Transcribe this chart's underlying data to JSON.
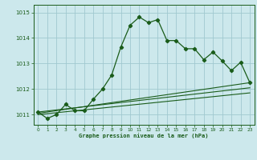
{
  "title": "Graphe pression niveau de la mer (hPa)",
  "bg_color": "#cce8ec",
  "grid_color": "#a0c8d0",
  "line_color": "#1a5c1a",
  "xlim": [
    -0.5,
    23.5
  ],
  "ylim": [
    1010.6,
    1015.3
  ],
  "yticks": [
    1011,
    1012,
    1013,
    1014,
    1015
  ],
  "xticks": [
    0,
    1,
    2,
    3,
    4,
    5,
    6,
    7,
    8,
    9,
    10,
    11,
    12,
    13,
    14,
    15,
    16,
    17,
    18,
    19,
    20,
    21,
    22,
    23
  ],
  "series_main": {
    "x": [
      0,
      1,
      2,
      3,
      4,
      5,
      6,
      7,
      8,
      9,
      10,
      11,
      12,
      13,
      14,
      15,
      16,
      17,
      18,
      19,
      20,
      21,
      22,
      23
    ],
    "y": [
      1011.1,
      1010.85,
      1011.0,
      1011.4,
      1011.15,
      1011.15,
      1011.6,
      1012.0,
      1012.55,
      1013.65,
      1014.5,
      1014.82,
      1014.6,
      1014.72,
      1013.9,
      1013.9,
      1013.58,
      1013.58,
      1013.15,
      1013.45,
      1013.1,
      1012.72,
      1013.05,
      1012.25
    ]
  },
  "line1": {
    "x": [
      0,
      23
    ],
    "y": [
      1011.05,
      1012.25
    ]
  },
  "line2": {
    "x": [
      0,
      23
    ],
    "y": [
      1011.1,
      1012.05
    ]
  },
  "line3": {
    "x": [
      0,
      23
    ],
    "y": [
      1011.0,
      1011.85
    ]
  }
}
